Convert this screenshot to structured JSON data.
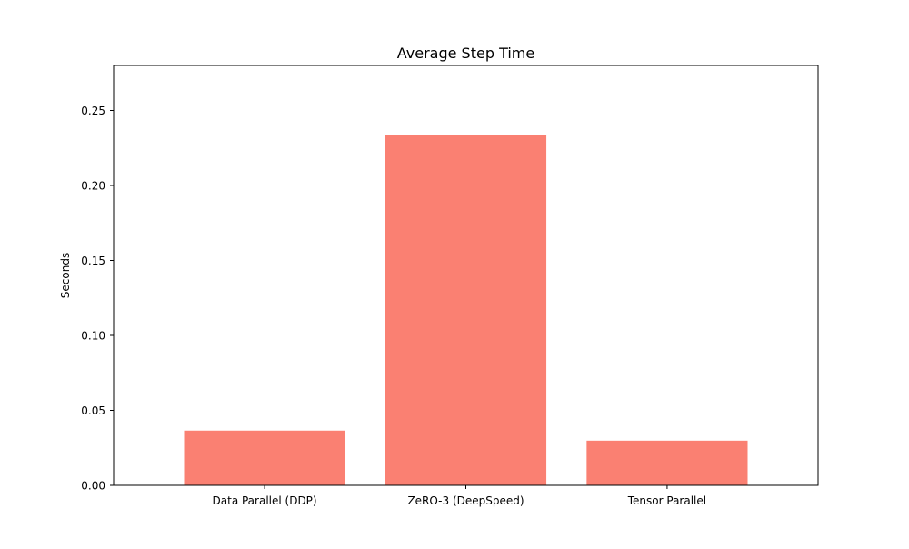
{
  "chart_data": {
    "type": "bar",
    "title": "Average Step Time",
    "xlabel": "",
    "ylabel": "Seconds",
    "categories": [
      "Data Parallel (DDP)",
      "ZeRO-3 (DeepSpeed)",
      "Tensor Parallel"
    ],
    "values": [
      0.0365,
      0.2335,
      0.0298
    ],
    "ylim": [
      0,
      0.28
    ],
    "yticks": [
      0.0,
      0.05,
      0.1,
      0.15,
      0.2,
      0.25
    ],
    "ytick_labels": [
      "0.00",
      "0.05",
      "0.10",
      "0.15",
      "0.20",
      "0.25"
    ],
    "bar_color": "#fa8072",
    "grid": false,
    "legend": "none"
  }
}
